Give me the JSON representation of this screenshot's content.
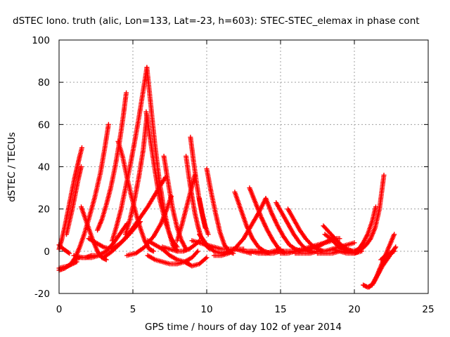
{
  "chart_data": {
    "type": "scatter",
    "title": "dSTEC Iono. truth (alic, Lon=133, Lat=-23, h=603): STEC-STEC_elemax in phase cont",
    "xlabel": "GPS time / hours of day 102 of year 2014",
    "ylabel": "dSTEC  / TECUs",
    "xlim": [
      0,
      25
    ],
    "ylim": [
      -20,
      100
    ],
    "xticks": [
      0,
      5,
      10,
      15,
      20,
      25
    ],
    "yticks": [
      -20,
      0,
      20,
      40,
      60,
      80,
      100
    ],
    "grid": true,
    "legend": "none",
    "marker": "+",
    "color": "#ff0000",
    "series": [
      {
        "x": [
          0.0,
          0.2,
          0.4,
          0.6,
          0.8,
          1.0,
          1.2,
          1.4,
          1.55
        ],
        "y": [
          1,
          6,
          12,
          19,
          26,
          33,
          39,
          45,
          49
        ]
      },
      {
        "x": [
          0.0,
          0.15,
          0.3,
          0.5,
          0.7
        ],
        "y": [
          3,
          2,
          1,
          0,
          -1
        ]
      },
      {
        "x": [
          0.0,
          0.3,
          0.6,
          0.9,
          1.2
        ],
        "y": [
          -8,
          -7.5,
          -7,
          -6,
          -5
        ]
      },
      {
        "x": [
          0.0,
          0.4,
          0.8,
          1.1,
          1.4,
          1.7,
          2.0,
          2.4,
          2.8,
          3.1,
          3.35
        ],
        "y": [
          -9,
          -8,
          -6,
          -3,
          2,
          8,
          15,
          25,
          37,
          49,
          60
        ]
      },
      {
        "x": [
          0.5,
          0.7,
          0.9,
          1.1,
          1.3,
          1.5
        ],
        "y": [
          8,
          14,
          20,
          27,
          34,
          40
        ]
      },
      {
        "x": [
          1.5,
          1.7,
          2.0,
          2.3,
          2.6,
          2.9,
          3.2
        ],
        "y": [
          21,
          17,
          11,
          5,
          0,
          -3,
          -4
        ]
      },
      {
        "x": [
          1.0,
          1.4,
          1.8,
          2.2,
          2.6
        ],
        "y": [
          -4,
          -3,
          -3,
          -2,
          -2
        ]
      },
      {
        "x": [
          2.6,
          2.9,
          3.2,
          3.5,
          3.8,
          4.1,
          4.35,
          4.55
        ],
        "y": [
          10,
          15,
          22,
          30,
          40,
          52,
          64,
          75
        ]
      },
      {
        "x": [
          1.0,
          1.6,
          2.2,
          2.7,
          3.2,
          3.7,
          4.2,
          4.6
        ],
        "y": [
          -2,
          -3,
          -3,
          -2,
          0,
          4,
          9,
          13
        ]
      },
      {
        "x": [
          2.0,
          2.5,
          3.0,
          3.5,
          4.0,
          4.5,
          5.0,
          5.5
        ],
        "y": [
          6,
          4,
          2,
          1,
          3,
          6,
          10,
          14
        ]
      },
      {
        "x": [
          3.6,
          3.9,
          4.2,
          4.5,
          4.8,
          5.1,
          5.4,
          5.7,
          5.95
        ],
        "y": [
          5,
          12,
          20,
          30,
          40,
          51,
          63,
          76,
          87
        ]
      },
      {
        "x": [
          4.0,
          4.3,
          4.6,
          4.9,
          5.2,
          5.5,
          5.8,
          6.1,
          6.4
        ],
        "y": [
          52,
          45,
          35,
          26,
          18,
          11,
          5,
          1,
          0
        ]
      },
      {
        "x": [
          4.5,
          4.8,
          5.1,
          5.4,
          5.7,
          5.95
        ],
        "y": [
          8,
          15,
          24,
          35,
          48,
          64
        ]
      },
      {
        "x": [
          3.0,
          3.6,
          4.2,
          4.8,
          5.4,
          6.0,
          6.6,
          7.2
        ],
        "y": [
          -3,
          0,
          4,
          9,
          15,
          21,
          28,
          35
        ]
      },
      {
        "x": [
          5.95,
          6.2,
          6.5,
          6.8,
          7.1,
          7.4,
          7.7,
          8.0
        ],
        "y": [
          87,
          70,
          50,
          33,
          20,
          10,
          3,
          0
        ]
      },
      {
        "x": [
          5.9,
          6.2,
          6.5,
          6.8,
          7.2,
          7.6,
          8.0
        ],
        "y": [
          66,
          52,
          38,
          25,
          14,
          6,
          2
        ]
      },
      {
        "x": [
          4.6,
          5.2,
          5.8,
          6.4,
          6.9,
          7.3,
          7.6
        ],
        "y": [
          -2,
          -1,
          2,
          7,
          13,
          20,
          26
        ]
      },
      {
        "x": [
          6.0,
          6.5,
          7.0,
          7.5,
          8.0,
          8.5,
          9.0,
          9.4
        ],
        "y": [
          -2,
          -4,
          -5,
          -6,
          -6,
          -5,
          -3,
          0
        ]
      },
      {
        "x": [
          7.1,
          7.4,
          7.7,
          8.0,
          8.3,
          8.6
        ],
        "y": [
          45,
          32,
          20,
          11,
          5,
          1
        ]
      },
      {
        "x": [
          6.0,
          6.5,
          7.0,
          7.5,
          8.0,
          8.5,
          8.8
        ],
        "y": [
          5,
          3,
          1,
          -2,
          -4,
          -5,
          -6
        ]
      },
      {
        "x": [
          7.0,
          7.5,
          8.0,
          8.4,
          8.8,
          9.2,
          9.5
        ],
        "y": [
          2,
          1,
          0,
          0,
          1,
          3,
          5
        ]
      },
      {
        "x": [
          8.6,
          8.8,
          9.0,
          9.2,
          9.4,
          9.6,
          9.9,
          10.2
        ],
        "y": [
          45,
          35,
          26,
          18,
          12,
          7,
          3,
          1
        ]
      },
      {
        "x": [
          8.9,
          9.1,
          9.3,
          9.5,
          9.7,
          9.9
        ],
        "y": [
          54,
          43,
          33,
          24,
          17,
          11
        ]
      },
      {
        "x": [
          8.0,
          8.3,
          8.6,
          8.9,
          9.2
        ],
        "y": [
          5,
          12,
          20,
          28,
          36
        ]
      },
      {
        "x": [
          8.5,
          9.0,
          9.5,
          10.0
        ],
        "y": [
          -5,
          -7,
          -6,
          -3
        ]
      },
      {
        "x": [
          9.5,
          9.7,
          9.9,
          10.1
        ],
        "y": [
          25,
          18,
          12,
          8
        ]
      },
      {
        "x": [
          10.0,
          10.3,
          10.6,
          10.9,
          11.2,
          11.5,
          11.8
        ],
        "y": [
          39,
          28,
          18,
          9,
          3,
          0,
          -1
        ]
      },
      {
        "x": [
          9.0,
          9.5,
          10.0,
          10.5,
          11.0,
          11.5,
          12.0,
          12.5
        ],
        "y": [
          5,
          4,
          3,
          2,
          1,
          1,
          1,
          1
        ]
      },
      {
        "x": [
          9.5,
          10.0,
          10.5,
          11.0,
          11.5,
          12.0,
          12.5,
          13.0
        ],
        "y": [
          8,
          3,
          0,
          -1,
          0,
          1,
          0,
          -1
        ]
      },
      {
        "x": [
          10.5,
          11.0,
          11.5,
          12.0,
          12.5,
          13.0,
          13.5,
          14.0
        ],
        "y": [
          -2,
          -2,
          -1,
          2,
          6,
          12,
          18,
          25
        ]
      },
      {
        "x": [
          11.9,
          12.3,
          12.7,
          13.1,
          13.5,
          13.9,
          14.3
        ],
        "y": [
          28,
          20,
          12,
          6,
          2,
          0,
          -1
        ]
      },
      {
        "x": [
          12.9,
          13.3,
          13.7,
          14.1,
          14.5,
          14.9,
          15.3
        ],
        "y": [
          30,
          23,
          16,
          10,
          5,
          1,
          -1
        ]
      },
      {
        "x": [
          14.0,
          14.4,
          14.8,
          15.2,
          15.6,
          16.0,
          16.4,
          16.8
        ],
        "y": [
          25,
          18,
          12,
          7,
          3,
          1,
          0,
          0
        ]
      },
      {
        "x": [
          14.7,
          15.1,
          15.5,
          15.9,
          16.3,
          16.7,
          17.1
        ],
        "y": [
          23,
          18,
          13,
          8,
          4,
          1,
          0
        ]
      },
      {
        "x": [
          15.5,
          15.9,
          16.3,
          16.7,
          17.1,
          17.5,
          17.9
        ],
        "y": [
          20,
          15,
          10,
          6,
          3,
          1,
          0
        ]
      },
      {
        "x": [
          12.0,
          12.5,
          13.0,
          13.5,
          14.0,
          14.5,
          15.0
        ],
        "y": [
          1,
          0,
          0,
          -1,
          -1,
          0,
          1
        ]
      },
      {
        "x": [
          13.0,
          13.5,
          14.0,
          14.5,
          15.0,
          15.5,
          16.0,
          16.5,
          17.0,
          17.5,
          18.0,
          18.5
        ],
        "y": [
          0,
          0,
          -1,
          -1,
          0,
          0,
          0,
          1,
          2,
          3,
          4,
          5
        ]
      },
      {
        "x": [
          15.0,
          15.5,
          16.0,
          16.5,
          17.0,
          17.5,
          18.0,
          18.5,
          19.0
        ],
        "y": [
          -1,
          -1,
          0,
          0,
          1,
          2,
          4,
          6,
          6
        ]
      },
      {
        "x": [
          16.0,
          16.5,
          17.0,
          17.5,
          18.0,
          18.5,
          19.0,
          19.5,
          20.0
        ],
        "y": [
          -1,
          -1,
          -1,
          0,
          0,
          1,
          2,
          3,
          4
        ]
      },
      {
        "x": [
          17.9,
          18.3,
          18.7,
          19.1,
          19.5,
          19.9
        ],
        "y": [
          12,
          9,
          6,
          3,
          1,
          0
        ]
      },
      {
        "x": [
          18.0,
          18.4,
          18.8,
          19.2,
          19.6,
          20.0
        ],
        "y": [
          8,
          6,
          3,
          1,
          0,
          0
        ]
      },
      {
        "x": [
          17.5,
          18.0,
          18.5,
          19.0,
          19.5,
          20.0,
          20.5
        ],
        "y": [
          -1,
          -1,
          -1,
          0,
          0,
          -1,
          0
        ]
      },
      {
        "x": [
          18.5,
          19.0,
          19.5,
          20.0,
          20.3
        ],
        "y": [
          1,
          0,
          -1,
          -1,
          0
        ]
      },
      {
        "x": [
          20.0,
          20.3,
          20.6,
          20.9,
          21.2,
          21.45
        ],
        "y": [
          0,
          1,
          4,
          8,
          14,
          21
        ]
      },
      {
        "x": [
          20.2,
          20.5,
          20.8,
          21.1,
          21.4,
          21.7,
          22.0
        ],
        "y": [
          0,
          1,
          3,
          6,
          11,
          20,
          36
        ]
      },
      {
        "x": [
          20.6,
          20.9,
          21.2,
          21.5,
          21.8,
          22.1,
          22.4,
          22.7
        ],
        "y": [
          -16,
          -17,
          -16,
          -12,
          -7,
          -2,
          3,
          8
        ]
      },
      {
        "x": [
          21.0,
          21.3,
          21.6,
          21.9,
          22.2,
          22.5,
          22.8
        ],
        "y": [
          -17,
          -15,
          -11,
          -7,
          -4,
          -1,
          2
        ]
      },
      {
        "x": [
          21.8,
          22.1,
          22.4,
          22.7
        ],
        "y": [
          -4,
          -2,
          -1,
          0
        ]
      }
    ]
  }
}
